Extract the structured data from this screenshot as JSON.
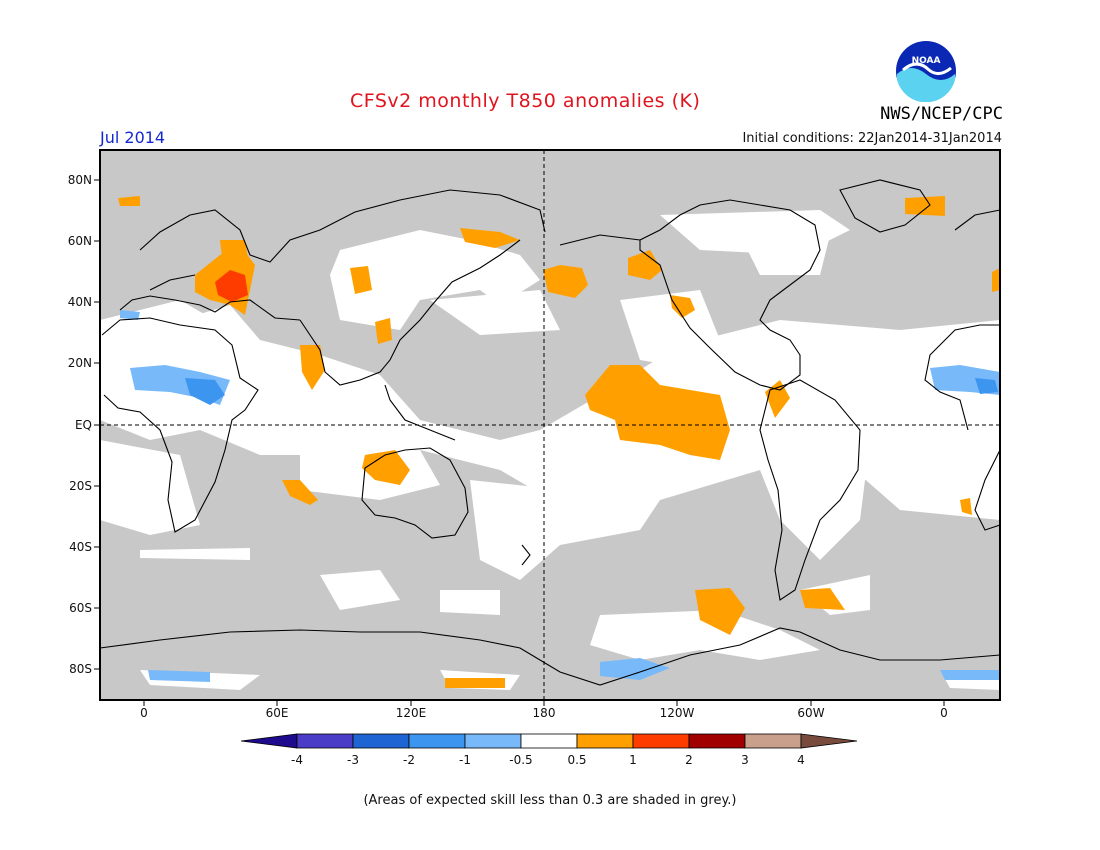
{
  "title": "CFSv2 monthly T850 anomalies (K)",
  "target_month": "Jul 2014",
  "initial_conditions": "Initial conditions: 22Jan2014-31Jan2014",
  "agency": "NWS/NCEP/CPC",
  "logo_text": "NOAA",
  "latitude_labels": [
    "80N",
    "60N",
    "40N",
    "20N",
    "EQ",
    "20S",
    "40S",
    "60S",
    "80S"
  ],
  "longitude_labels": [
    "0",
    "60E",
    "120E",
    "180",
    "120W",
    "60W",
    "0"
  ],
  "colorbar": {
    "labels": [
      "-4",
      "-3",
      "-2",
      "-1",
      "-0.5",
      "0.5",
      "1",
      "2",
      "3",
      "4"
    ],
    "colors": [
      "#1e0a8c",
      "#4b3cc8",
      "#1e64d2",
      "#3c96f0",
      "#78b9fa",
      "#ffffff",
      "#ffa000",
      "#ff3c00",
      "#a00000",
      "#c8a08c",
      "#784b3c"
    ]
  },
  "skill_mask_color": "#c8c8c8",
  "footnote": "(Areas of expected skill less than 0.3 are shaded in grey.)"
}
